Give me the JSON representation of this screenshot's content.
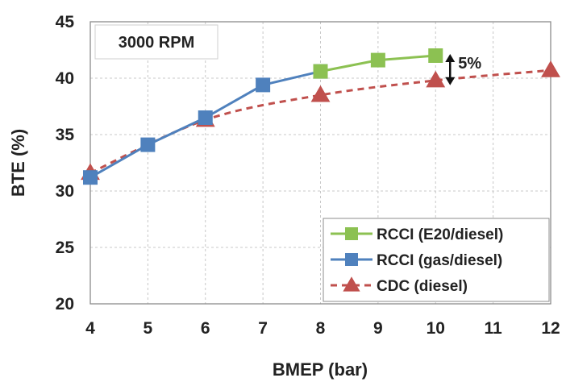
{
  "chart_data": {
    "type": "line",
    "title": "",
    "annotation": "3000 RPM",
    "xlabel": "BMEP (bar)",
    "ylabel": "BTE (%)",
    "xlim": [
      4,
      12
    ],
    "ylim": [
      20,
      45
    ],
    "xticks": [
      4,
      5,
      6,
      7,
      8,
      9,
      10,
      11,
      12
    ],
    "yticks": [
      20,
      25,
      30,
      35,
      40,
      45
    ],
    "grid": true,
    "legend_position": "bottom-right",
    "gap_annotation": {
      "label": "5%",
      "x": 10,
      "y_from": 39.8,
      "y_to": 42.0
    },
    "series": [
      {
        "name": "RCCI (E20/diesel)",
        "color": "#8cc152",
        "marker": "square",
        "line_style": "solid",
        "x": [
          8,
          9,
          10
        ],
        "y": [
          40.6,
          41.6,
          42.0
        ]
      },
      {
        "name": "RCCI (gas/diesel)",
        "color": "#4f81bd",
        "marker": "square",
        "line_style": "solid",
        "x": [
          4,
          5,
          6,
          7,
          8
        ],
        "y": [
          31.2,
          34.1,
          36.5,
          39.4,
          40.6
        ]
      },
      {
        "name": "CDC (diesel)",
        "color": "#c0504d",
        "marker": "triangle",
        "line_style": "dashed",
        "x": [
          4,
          6,
          8,
          10,
          12
        ],
        "y": [
          31.6,
          36.3,
          38.5,
          39.8,
          40.7
        ]
      }
    ]
  }
}
